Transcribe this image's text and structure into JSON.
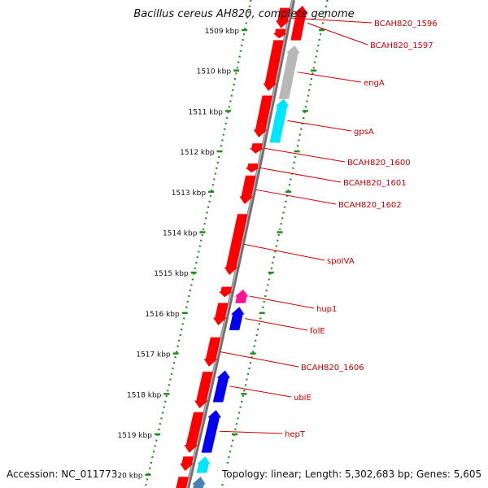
{
  "header": {
    "title": "Bacillus cereus AH820, complete genome"
  },
  "footer": {
    "accession": "Accession: NC_011773",
    "summary": "Topology: linear; Length: 5,302,683 bp; Genes: 5,605"
  },
  "palette": {
    "forward_gene": "#ff0000",
    "reverse_gray": "#b8b8b8",
    "cyan": "#00e5ff",
    "blue": "#0000ee",
    "magenta": "#ff1493",
    "steel": "#4682b4",
    "label_text": "#cc0000",
    "ruler_green": "#1f8a1f",
    "backbone": "#888888"
  },
  "ruler": {
    "unit": "kbp",
    "ticks": [
      {
        "label": "1509 kbp",
        "kb": 1509
      },
      {
        "label": "1510 kbp",
        "kb": 1510
      },
      {
        "label": "1511 kbp",
        "kb": 1511
      },
      {
        "label": "1512 kbp",
        "kb": 1512
      },
      {
        "label": "1513 kbp",
        "kb": 1513
      },
      {
        "label": "1514 kbp",
        "kb": 1514
      },
      {
        "label": "1515 kbp",
        "kb": 1515
      },
      {
        "label": "1516 kbp",
        "kb": 1516
      },
      {
        "label": "1517 kbp",
        "kb": 1517
      },
      {
        "label": "1518 kbp",
        "kb": 1518
      },
      {
        "label": "1519 kbp",
        "kb": 1519
      },
      {
        "label": "1520 kbp",
        "kb": 1520
      }
    ]
  },
  "genes": [
    {
      "name": "BCAH820_1596",
      "label": "BCAH820_1596",
      "start": 1508.45,
      "end": 1508.95,
      "strand": "+",
      "color": "red"
    },
    {
      "name": "BCAH820_1597-fwd",
      "label": "",
      "start": 1508.97,
      "end": 1509.2,
      "strand": "+",
      "color": "red"
    },
    {
      "name": "BCAH820_1597",
      "label": "BCAH820_1597",
      "start": 1508.4,
      "end": 1509.25,
      "strand": "-",
      "color": "red"
    },
    {
      "name": "engA-fwd",
      "label": "",
      "start": 1509.25,
      "end": 1510.5,
      "strand": "+",
      "color": "red"
    },
    {
      "name": "engA",
      "label": "engA",
      "start": 1509.38,
      "end": 1510.7,
      "strand": "-",
      "color": "gray"
    },
    {
      "name": "gpsA-fwd",
      "label": "",
      "start": 1510.62,
      "end": 1511.65,
      "strand": "+",
      "color": "red"
    },
    {
      "name": "gpsA",
      "label": "gpsA",
      "start": 1510.7,
      "end": 1511.78,
      "strand": "-",
      "color": "cyan"
    },
    {
      "name": "BCAH820_1600",
      "label": "BCAH820_1600",
      "start": 1511.8,
      "end": 1512.05,
      "strand": "+",
      "color": "red"
    },
    {
      "name": "BCAH820_1601",
      "label": "BCAH820_1601",
      "start": 1512.3,
      "end": 1512.52,
      "strand": "+",
      "color": "red"
    },
    {
      "name": "BCAH820_1602",
      "label": "BCAH820_1602",
      "start": 1512.6,
      "end": 1513.3,
      "strand": "+",
      "color": "red"
    },
    {
      "name": "spoIVA",
      "label": "spoIVA",
      "start": 1513.55,
      "end": 1515.05,
      "strand": "+",
      "color": "red"
    },
    {
      "name": "hup1-fwd",
      "label": "",
      "start": 1515.35,
      "end": 1515.6,
      "strand": "+",
      "color": "red"
    },
    {
      "name": "hup1",
      "label": "hup1",
      "start": 1515.42,
      "end": 1515.75,
      "strand": "-",
      "color": "magenta"
    },
    {
      "name": "folE-fwd",
      "label": "",
      "start": 1515.75,
      "end": 1516.3,
      "strand": "+",
      "color": "red"
    },
    {
      "name": "folE",
      "label": "folE",
      "start": 1515.85,
      "end": 1516.42,
      "strand": "-",
      "color": "blue"
    },
    {
      "name": "BCAH820_1606",
      "label": "BCAH820_1606",
      "start": 1516.6,
      "end": 1517.32,
      "strand": "+",
      "color": "red"
    },
    {
      "name": "BCAH820_1606b",
      "label": "",
      "start": 1517.45,
      "end": 1518.35,
      "strand": "+",
      "color": "red"
    },
    {
      "name": "ubiE",
      "label": "ubiE",
      "start": 1517.42,
      "end": 1518.2,
      "strand": "-",
      "color": "blue"
    },
    {
      "name": "hepT-fwd",
      "label": "",
      "start": 1518.45,
      "end": 1519.45,
      "strand": "+",
      "color": "red"
    },
    {
      "name": "hepT",
      "label": "hepT",
      "start": 1518.4,
      "end": 1519.45,
      "strand": "-",
      "color": "blue"
    },
    {
      "name": "gene-1519b-fwd",
      "label": "",
      "start": 1519.55,
      "end": 1519.9,
      "strand": "+",
      "color": "red"
    },
    {
      "name": "gene-1519b",
      "label": "",
      "start": 1519.55,
      "end": 1519.95,
      "strand": "-",
      "color": "cyan"
    },
    {
      "name": "gene-1520-fwd",
      "label": "",
      "start": 1520.05,
      "end": 1520.6,
      "strand": "+",
      "color": "red"
    },
    {
      "name": "gene-1520",
      "label": "",
      "start": 1520.05,
      "end": 1520.6,
      "strand": "-",
      "color": "steel"
    }
  ]
}
